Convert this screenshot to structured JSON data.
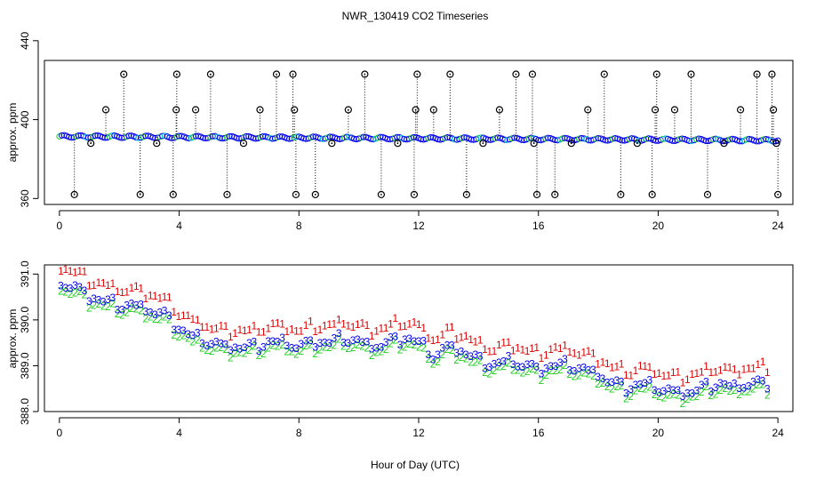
{
  "title": "NWR_130419  CO2 Timeseries",
  "xlabel": "Hour of Day (UTC)",
  "colors": {
    "series1": "#e00000",
    "series2": "#22cc22",
    "series3": "#0000ee",
    "series4": "#00cccc",
    "flag": "#000000",
    "axis": "#000000"
  },
  "chart_data": [
    {
      "type": "scatter",
      "panel": "top",
      "ylabel": "approx. ppm",
      "xlim": [
        -0.5,
        24.5
      ],
      "ylim": [
        357,
        430
      ],
      "xticks": [
        "0",
        "4",
        "8",
        "12",
        "16",
        "20",
        "24"
      ],
      "xtick_values": [
        0,
        4,
        8,
        12,
        16,
        20,
        24
      ],
      "yticks": [
        "360",
        "400",
        "440"
      ],
      "ytick_values": [
        360,
        400,
        440
      ],
      "baseline": {
        "start": 391.5,
        "end": 389.5,
        "note": "dense blue/green/cyan points along ~390 ppm"
      },
      "flag_points": [
        {
          "x": 0.5,
          "y": 362
        },
        {
          "x": 1.05,
          "y": 388
        },
        {
          "x": 1.55,
          "y": 405
        },
        {
          "x": 2.15,
          "y": 423
        },
        {
          "x": 2.7,
          "y": 362
        },
        {
          "x": 3.25,
          "y": 388
        },
        {
          "x": 3.8,
          "y": 362
        },
        {
          "x": 3.9,
          "y": 405
        },
        {
          "x": 3.92,
          "y": 423
        },
        {
          "x": 4.55,
          "y": 405
        },
        {
          "x": 5.05,
          "y": 423
        },
        {
          "x": 5.6,
          "y": 362
        },
        {
          "x": 6.15,
          "y": 388
        },
        {
          "x": 6.7,
          "y": 405
        },
        {
          "x": 7.25,
          "y": 423
        },
        {
          "x": 7.8,
          "y": 423
        },
        {
          "x": 7.85,
          "y": 405
        },
        {
          "x": 7.9,
          "y": 362
        },
        {
          "x": 8.55,
          "y": 362
        },
        {
          "x": 9.1,
          "y": 388
        },
        {
          "x": 9.65,
          "y": 405
        },
        {
          "x": 10.2,
          "y": 423
        },
        {
          "x": 10.75,
          "y": 362
        },
        {
          "x": 11.3,
          "y": 388
        },
        {
          "x": 11.85,
          "y": 362
        },
        {
          "x": 11.9,
          "y": 405
        },
        {
          "x": 11.95,
          "y": 423
        },
        {
          "x": 12.5,
          "y": 405
        },
        {
          "x": 13.05,
          "y": 423
        },
        {
          "x": 13.6,
          "y": 362
        },
        {
          "x": 14.15,
          "y": 388
        },
        {
          "x": 14.7,
          "y": 405
        },
        {
          "x": 15.25,
          "y": 423
        },
        {
          "x": 15.8,
          "y": 423
        },
        {
          "x": 15.85,
          "y": 388
        },
        {
          "x": 15.95,
          "y": 362
        },
        {
          "x": 16.55,
          "y": 362
        },
        {
          "x": 17.1,
          "y": 388
        },
        {
          "x": 17.65,
          "y": 405
        },
        {
          "x": 18.2,
          "y": 423
        },
        {
          "x": 18.75,
          "y": 362
        },
        {
          "x": 19.3,
          "y": 388
        },
        {
          "x": 19.8,
          "y": 362
        },
        {
          "x": 19.9,
          "y": 405
        },
        {
          "x": 19.95,
          "y": 423
        },
        {
          "x": 20.55,
          "y": 405
        },
        {
          "x": 21.1,
          "y": 423
        },
        {
          "x": 21.65,
          "y": 362
        },
        {
          "x": 22.2,
          "y": 388
        },
        {
          "x": 22.75,
          "y": 405
        },
        {
          "x": 23.3,
          "y": 423
        },
        {
          "x": 23.8,
          "y": 423
        },
        {
          "x": 23.85,
          "y": 405
        },
        {
          "x": 23.95,
          "y": 388
        },
        {
          "x": 24.0,
          "y": 362
        }
      ]
    },
    {
      "type": "scatter",
      "panel": "bottom",
      "ylabel": "approx. ppm",
      "xlim": [
        -0.5,
        24.5
      ],
      "ylim": [
        388.0,
        391.2
      ],
      "xticks": [
        "0",
        "4",
        "8",
        "12",
        "16",
        "20",
        "24"
      ],
      "xtick_values": [
        0,
        4,
        8,
        12,
        16,
        20,
        24
      ],
      "yticks": [
        "388.0",
        "389.0",
        "390.0",
        "391.0"
      ],
      "ytick_values": [
        388.0,
        389.0,
        390.0,
        391.0
      ],
      "series": [
        {
          "name": "1",
          "offset": 0.35
        },
        {
          "name": "2",
          "offset": -0.12
        },
        {
          "name": "3",
          "offset": 0.0
        }
      ],
      "trend": {
        "x": [
          0,
          0.5,
          1,
          1.5,
          2,
          2.5,
          3,
          3.5,
          4,
          4.5,
          5,
          5.5,
          6,
          6.5,
          7,
          7.5,
          8,
          8.5,
          9,
          9.5,
          10,
          10.5,
          11,
          11.5,
          12,
          12.5,
          13,
          13.5,
          14,
          14.5,
          15,
          15.5,
          16,
          16.5,
          17,
          17.5,
          18,
          18.5,
          19,
          19.5,
          20,
          20.5,
          21,
          21.5,
          22,
          22.5,
          23,
          23.5
        ],
        "y": [
          390.8,
          390.7,
          390.5,
          390.4,
          390.3,
          390.3,
          390.2,
          390.1,
          389.8,
          389.6,
          389.5,
          389.4,
          389.4,
          389.4,
          389.5,
          389.5,
          389.4,
          389.5,
          389.5,
          389.6,
          389.5,
          389.4,
          389.5,
          389.6,
          389.5,
          389.2,
          389.4,
          389.3,
          389.1,
          389.0,
          389.1,
          389.0,
          388.9,
          389.0,
          389.0,
          388.9,
          388.8,
          388.6,
          388.5,
          388.6,
          388.5,
          388.4,
          388.4,
          388.5,
          388.6,
          388.5,
          388.6,
          388.6
        ]
      }
    }
  ]
}
